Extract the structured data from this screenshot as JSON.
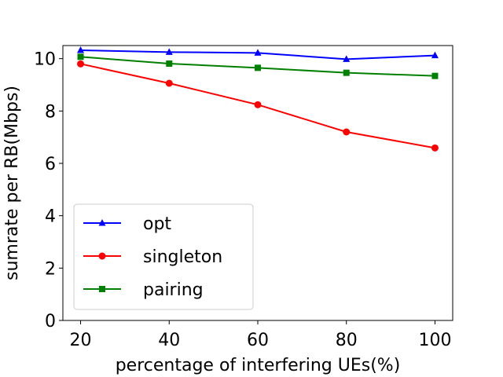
{
  "chart_data": {
    "type": "line",
    "title": "",
    "xlabel": "percentage of interfering UEs(%)",
    "ylabel": "sumrate per RB(Mbps)",
    "x": [
      20,
      40,
      60,
      80,
      100
    ],
    "xticks": [
      20,
      40,
      60,
      80,
      100
    ],
    "yticks": [
      0,
      2,
      4,
      6,
      8,
      10
    ],
    "xlim": [
      16,
      104
    ],
    "ylim": [
      0,
      10.5
    ],
    "grid": false,
    "legend_position": "lower-left",
    "series": [
      {
        "name": "opt",
        "color": "#0000ff",
        "marker": "triangle",
        "values": [
          10.32,
          10.25,
          10.22,
          9.98,
          10.12
        ]
      },
      {
        "name": "singleton",
        "color": "#ff0000",
        "marker": "circle",
        "values": [
          9.8,
          9.06,
          8.24,
          7.2,
          6.59
        ]
      },
      {
        "name": "pairing",
        "color": "#008000",
        "marker": "square",
        "values": [
          10.07,
          9.81,
          9.65,
          9.46,
          9.34
        ]
      }
    ]
  }
}
